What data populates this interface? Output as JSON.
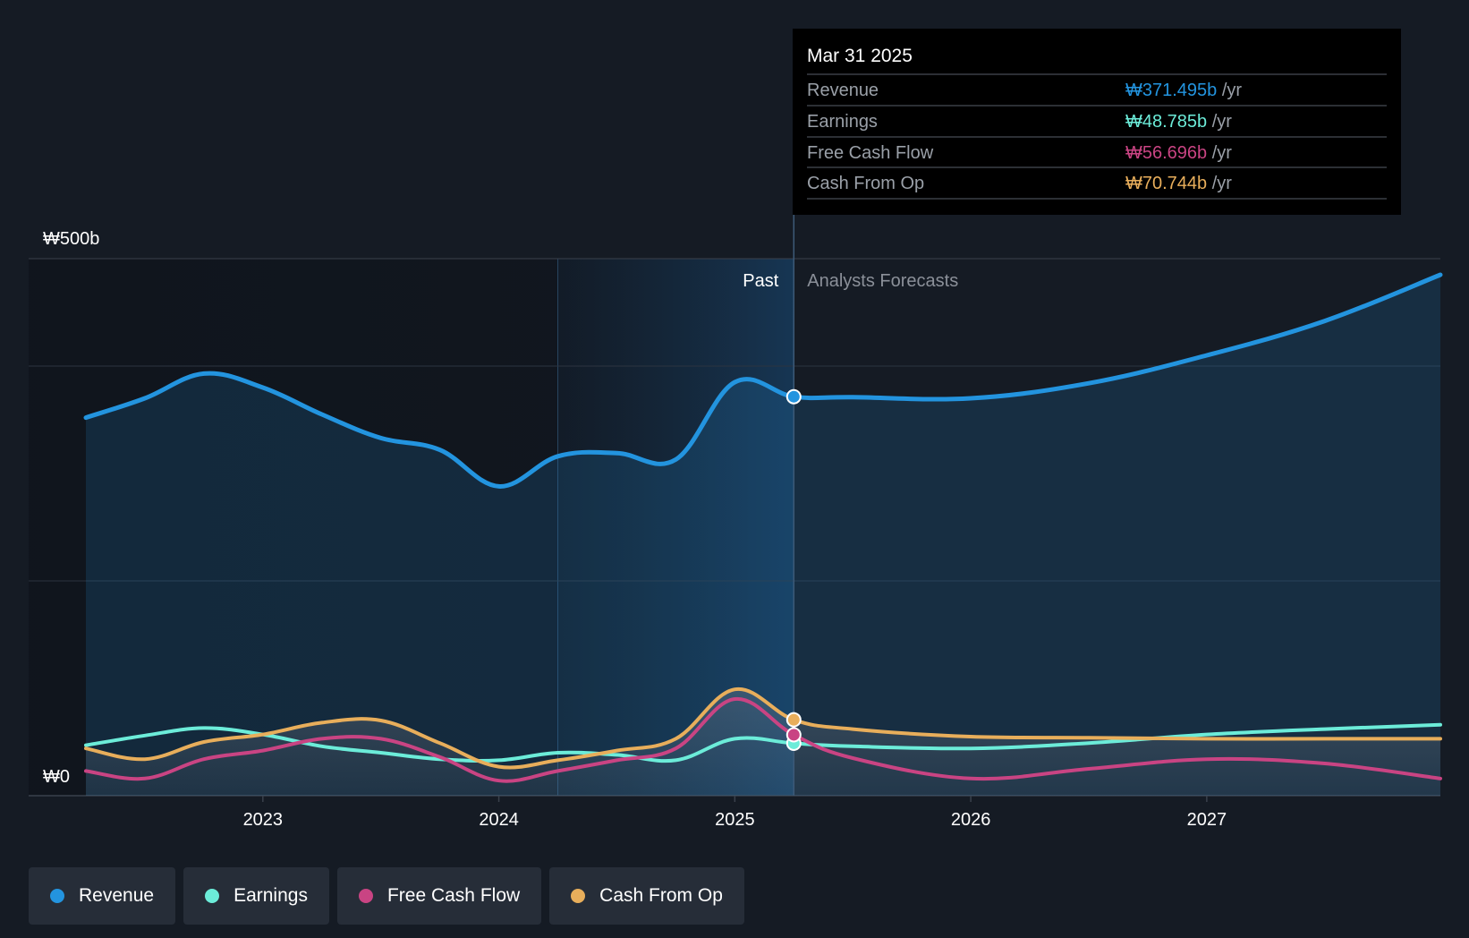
{
  "colors": {
    "background": "#151b24",
    "revenue": "#2394df",
    "earnings": "#6cecd9",
    "free_cash_flow": "#c94483",
    "cash_from_op": "#e8ae5b",
    "grid": "#2c3440"
  },
  "tooltip": {
    "date": "Mar 31 2025",
    "unit": "/yr",
    "rows": [
      {
        "label": "Revenue",
        "value": "₩371.495b",
        "key": "revenue"
      },
      {
        "label": "Earnings",
        "value": "₩48.785b",
        "key": "earnings"
      },
      {
        "label": "Free Cash Flow",
        "value": "₩56.696b",
        "key": "free_cash_flow"
      },
      {
        "label": "Cash From Op",
        "value": "₩70.744b",
        "key": "cash_from_op"
      }
    ]
  },
  "legend": [
    {
      "label": "Revenue",
      "key": "revenue"
    },
    {
      "label": "Earnings",
      "key": "earnings"
    },
    {
      "label": "Free Cash Flow",
      "key": "free_cash_flow"
    },
    {
      "label": "Cash From Op",
      "key": "cash_from_op"
    }
  ],
  "chart_data": {
    "type": "area",
    "title": "",
    "xlabel": "",
    "ylabel": "",
    "ylim": [
      0,
      500
    ],
    "xlim": [
      2022.25,
      2027.99
    ],
    "y_tick_labels": [
      {
        "value": 500,
        "label": "₩500b"
      },
      {
        "value": 0,
        "label": "₩0"
      }
    ],
    "x_ticks": [
      2023,
      2024,
      2025,
      2026,
      2027
    ],
    "past_label": "Past",
    "forecast_label": "Analysts Forecasts",
    "past_end": 2025.25,
    "highlight_start": 2024.25,
    "series": [
      {
        "name": "Revenue",
        "key": "revenue",
        "points": [
          [
            2022.25,
            352
          ],
          [
            2022.5,
            370
          ],
          [
            2022.75,
            393
          ],
          [
            2023.0,
            380
          ],
          [
            2023.25,
            355
          ],
          [
            2023.5,
            333
          ],
          [
            2023.75,
            322
          ],
          [
            2024.0,
            288
          ],
          [
            2024.25,
            316
          ],
          [
            2024.5,
            319
          ],
          [
            2024.75,
            313
          ],
          [
            2025.0,
            385
          ],
          [
            2025.25,
            371.5
          ],
          [
            2025.5,
            371
          ],
          [
            2026.0,
            370
          ],
          [
            2026.5,
            384
          ],
          [
            2027.0,
            410
          ],
          [
            2027.5,
            442
          ],
          [
            2027.99,
            485
          ]
        ]
      },
      {
        "name": "Earnings",
        "key": "earnings",
        "points": [
          [
            2022.25,
            47
          ],
          [
            2022.5,
            56
          ],
          [
            2022.75,
            63
          ],
          [
            2023.0,
            57
          ],
          [
            2023.25,
            46
          ],
          [
            2023.5,
            40
          ],
          [
            2023.75,
            34
          ],
          [
            2024.0,
            33
          ],
          [
            2024.25,
            40
          ],
          [
            2024.5,
            38
          ],
          [
            2024.75,
            33
          ],
          [
            2025.0,
            53
          ],
          [
            2025.25,
            48.8
          ],
          [
            2025.5,
            46
          ],
          [
            2026.0,
            44
          ],
          [
            2026.5,
            49
          ],
          [
            2027.0,
            57
          ],
          [
            2027.5,
            62
          ],
          [
            2027.99,
            66
          ]
        ]
      },
      {
        "name": "Free Cash Flow",
        "key": "free_cash_flow",
        "points": [
          [
            2022.25,
            23
          ],
          [
            2022.5,
            16
          ],
          [
            2022.75,
            34
          ],
          [
            2023.0,
            42
          ],
          [
            2023.25,
            53
          ],
          [
            2023.5,
            53
          ],
          [
            2023.75,
            36
          ],
          [
            2024.0,
            14
          ],
          [
            2024.25,
            23
          ],
          [
            2024.5,
            33
          ],
          [
            2024.75,
            44
          ],
          [
            2025.0,
            90
          ],
          [
            2025.25,
            56.7
          ],
          [
            2025.5,
            35
          ],
          [
            2026.0,
            16
          ],
          [
            2026.5,
            25
          ],
          [
            2027.0,
            34
          ],
          [
            2027.5,
            30
          ],
          [
            2027.99,
            16
          ]
        ]
      },
      {
        "name": "Cash From Op",
        "key": "cash_from_op",
        "points": [
          [
            2022.25,
            44
          ],
          [
            2022.5,
            34
          ],
          [
            2022.75,
            50
          ],
          [
            2023.0,
            57
          ],
          [
            2023.25,
            68
          ],
          [
            2023.5,
            70
          ],
          [
            2023.75,
            49
          ],
          [
            2024.0,
            27
          ],
          [
            2024.25,
            33
          ],
          [
            2024.5,
            42
          ],
          [
            2024.75,
            53
          ],
          [
            2025.0,
            99
          ],
          [
            2025.25,
            70.7
          ],
          [
            2025.5,
            62
          ],
          [
            2026.0,
            55
          ],
          [
            2026.5,
            54
          ],
          [
            2027.0,
            53
          ],
          [
            2027.5,
            53
          ],
          [
            2027.99,
            53
          ]
        ]
      }
    ]
  }
}
